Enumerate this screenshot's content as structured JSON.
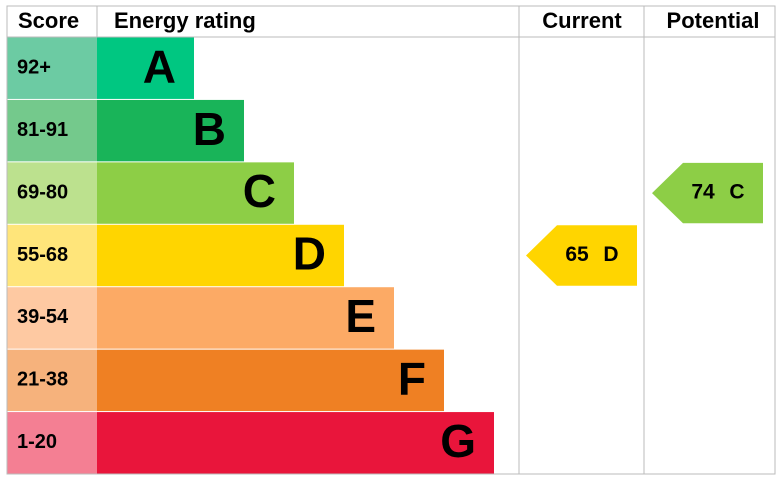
{
  "header": {
    "score": "Score",
    "rating": "Energy rating",
    "current": "Current",
    "potential": "Potential"
  },
  "bands": [
    {
      "score": "92+",
      "letter": "A",
      "color": "#00c781",
      "score_color": "#6ccba3"
    },
    {
      "score": "81-91",
      "letter": "B",
      "color": "#19b459",
      "score_color": "#74c98c"
    },
    {
      "score": "69-80",
      "letter": "C",
      "color": "#8dce46",
      "score_color": "#bce18e"
    },
    {
      "score": "55-68",
      "letter": "D",
      "color": "#ffd500",
      "score_color": "#ffe57a"
    },
    {
      "score": "39-54",
      "letter": "E",
      "color": "#fcaa65",
      "score_color": "#fec9a2"
    },
    {
      "score": "21-38",
      "letter": "F",
      "color": "#ef8023",
      "score_color": "#f6b27c"
    },
    {
      "score": "1-20",
      "letter": "G",
      "color": "#e9153b",
      "score_color": "#f47f93"
    }
  ],
  "current": {
    "value": 65,
    "letter": "D",
    "color": "#ffd500"
  },
  "potential": {
    "value": 74,
    "letter": "C",
    "color": "#8dce46"
  }
}
